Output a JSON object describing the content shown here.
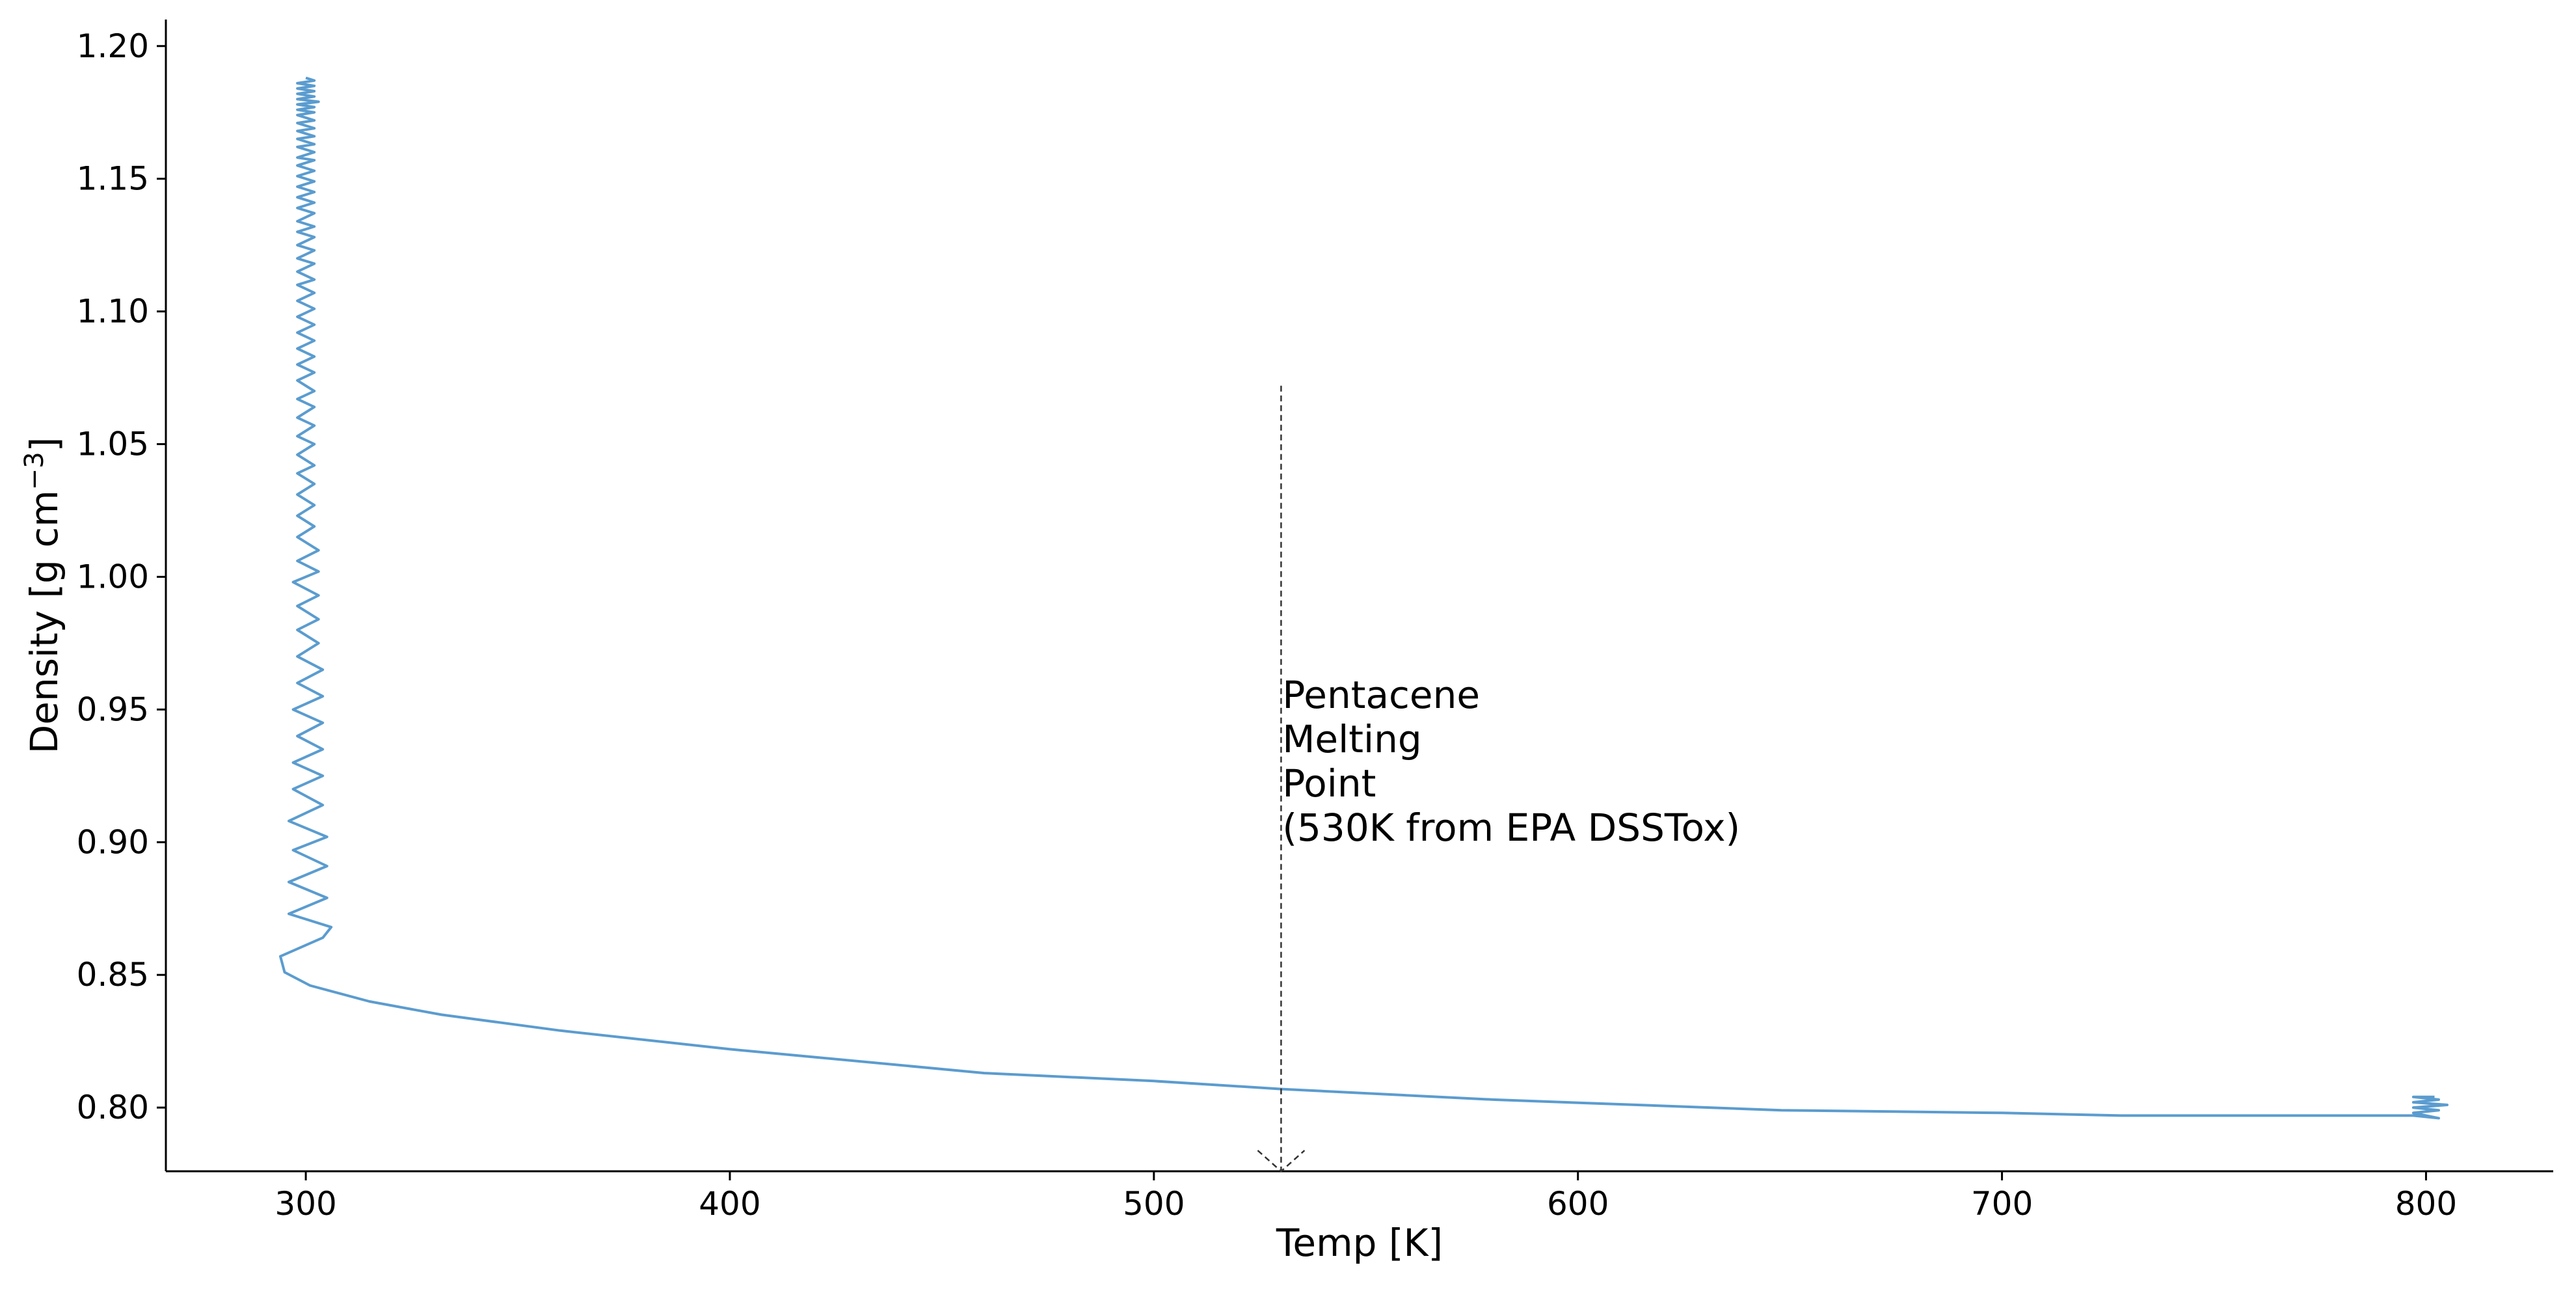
{
  "chart_data": {
    "type": "line",
    "title": "",
    "xlabel": "Temp [K]",
    "ylabel": "Density [g cm",
    "ylabel_superscript": "−3",
    "ylabel_suffix": "]",
    "xlim": [
      267,
      830
    ],
    "ylim": [
      0.776,
      1.21
    ],
    "x_ticks": [
      300,
      400,
      500,
      600,
      700,
      800
    ],
    "x_tick_labels": [
      "300",
      "400",
      "500",
      "600",
      "700",
      "800"
    ],
    "y_ticks": [
      0.8,
      0.85,
      0.9,
      0.95,
      1.0,
      1.05,
      1.1,
      1.15,
      1.2
    ],
    "y_tick_labels": [
      "0.80",
      "0.85",
      "0.90",
      "0.95",
      "1.00",
      "1.05",
      "1.10",
      "1.15",
      "1.20"
    ],
    "grid": false,
    "colors": {
      "series": "#5b9ccf",
      "marker_line": "#333333",
      "axis": "#000000"
    },
    "series": [
      {
        "points": [
          [
            300,
            1.188
          ],
          [
            302,
            1.187
          ],
          [
            298,
            1.186
          ],
          [
            302,
            1.185
          ],
          [
            298,
            1.184
          ],
          [
            302,
            1.183
          ],
          [
            298,
            1.182
          ],
          [
            302,
            1.181
          ],
          [
            298,
            1.18
          ],
          [
            303,
            1.179
          ],
          [
            298,
            1.178
          ],
          [
            302,
            1.177
          ],
          [
            298,
            1.176
          ],
          [
            302,
            1.175
          ],
          [
            298,
            1.174
          ],
          [
            302,
            1.172
          ],
          [
            298,
            1.171
          ],
          [
            302,
            1.169
          ],
          [
            298,
            1.168
          ],
          [
            302,
            1.166
          ],
          [
            298,
            1.165
          ],
          [
            302,
            1.163
          ],
          [
            298,
            1.162
          ],
          [
            302,
            1.16
          ],
          [
            298,
            1.158
          ],
          [
            302,
            1.157
          ],
          [
            298,
            1.155
          ],
          [
            302,
            1.153
          ],
          [
            298,
            1.151
          ],
          [
            302,
            1.149
          ],
          [
            298,
            1.147
          ],
          [
            302,
            1.145
          ],
          [
            298,
            1.143
          ],
          [
            302,
            1.141
          ],
          [
            298,
            1.139
          ],
          [
            302,
            1.137
          ],
          [
            298,
            1.134
          ],
          [
            302,
            1.132
          ],
          [
            298,
            1.13
          ],
          [
            302,
            1.128
          ],
          [
            298,
            1.125
          ],
          [
            302,
            1.123
          ],
          [
            298,
            1.12
          ],
          [
            302,
            1.118
          ],
          [
            298,
            1.115
          ],
          [
            302,
            1.112
          ],
          [
            298,
            1.11
          ],
          [
            302,
            1.107
          ],
          [
            298,
            1.104
          ],
          [
            302,
            1.101
          ],
          [
            298,
            1.098
          ],
          [
            302,
            1.095
          ],
          [
            298,
            1.092
          ],
          [
            302,
            1.089
          ],
          [
            298,
            1.086
          ],
          [
            302,
            1.083
          ],
          [
            298,
            1.08
          ],
          [
            302,
            1.077
          ],
          [
            298,
            1.074
          ],
          [
            302,
            1.07
          ],
          [
            298,
            1.067
          ],
          [
            302,
            1.064
          ],
          [
            298,
            1.06
          ],
          [
            302,
            1.057
          ],
          [
            298,
            1.053
          ],
          [
            302,
            1.05
          ],
          [
            298,
            1.046
          ],
          [
            302,
            1.042
          ],
          [
            298,
            1.039
          ],
          [
            302,
            1.035
          ],
          [
            298,
            1.031
          ],
          [
            302,
            1.027
          ],
          [
            298,
            1.023
          ],
          [
            302,
            1.019
          ],
          [
            298,
            1.015
          ],
          [
            303,
            1.01
          ],
          [
            298,
            1.006
          ],
          [
            303,
            1.002
          ],
          [
            297,
            0.998
          ],
          [
            303,
            0.993
          ],
          [
            298,
            0.989
          ],
          [
            303,
            0.984
          ],
          [
            298,
            0.98
          ],
          [
            303,
            0.975
          ],
          [
            298,
            0.97
          ],
          [
            304,
            0.965
          ],
          [
            298,
            0.96
          ],
          [
            304,
            0.955
          ],
          [
            297,
            0.95
          ],
          [
            304,
            0.945
          ],
          [
            298,
            0.94
          ],
          [
            304,
            0.935
          ],
          [
            297,
            0.93
          ],
          [
            304,
            0.925
          ],
          [
            297,
            0.92
          ],
          [
            304,
            0.914
          ],
          [
            296,
            0.908
          ],
          [
            305,
            0.902
          ],
          [
            297,
            0.897
          ],
          [
            305,
            0.891
          ],
          [
            296,
            0.885
          ],
          [
            305,
            0.879
          ],
          [
            296,
            0.873
          ],
          [
            306,
            0.868
          ],
          [
            304,
            0.864
          ],
          [
            294,
            0.857
          ],
          [
            295,
            0.851
          ],
          [
            301,
            0.846
          ],
          [
            315,
            0.84
          ],
          [
            332,
            0.835
          ],
          [
            360,
            0.829
          ],
          [
            400,
            0.822
          ],
          [
            420,
            0.819
          ],
          [
            460,
            0.813
          ],
          [
            500,
            0.81
          ],
          [
            530,
            0.807
          ],
          [
            580,
            0.803
          ],
          [
            648,
            0.799
          ],
          [
            700,
            0.798
          ],
          [
            728,
            0.797
          ],
          [
            790,
            0.797
          ],
          [
            797,
            0.797
          ],
          [
            803,
            0.796
          ],
          [
            797,
            0.798
          ],
          [
            803,
            0.799
          ],
          [
            797,
            0.8
          ],
          [
            805,
            0.801
          ],
          [
            797,
            0.802
          ],
          [
            803,
            0.803
          ],
          [
            797,
            0.804
          ],
          [
            802,
            0.804
          ]
        ]
      }
    ],
    "annotations": [
      {
        "type": "vline",
        "x": 530,
        "y_top": 1.072,
        "style": "dashed",
        "arrowhead": true,
        "lines": [
          "Pentacene",
          "Melting",
          "Point",
          "(530K from EPA DSSTox)"
        ]
      }
    ]
  }
}
